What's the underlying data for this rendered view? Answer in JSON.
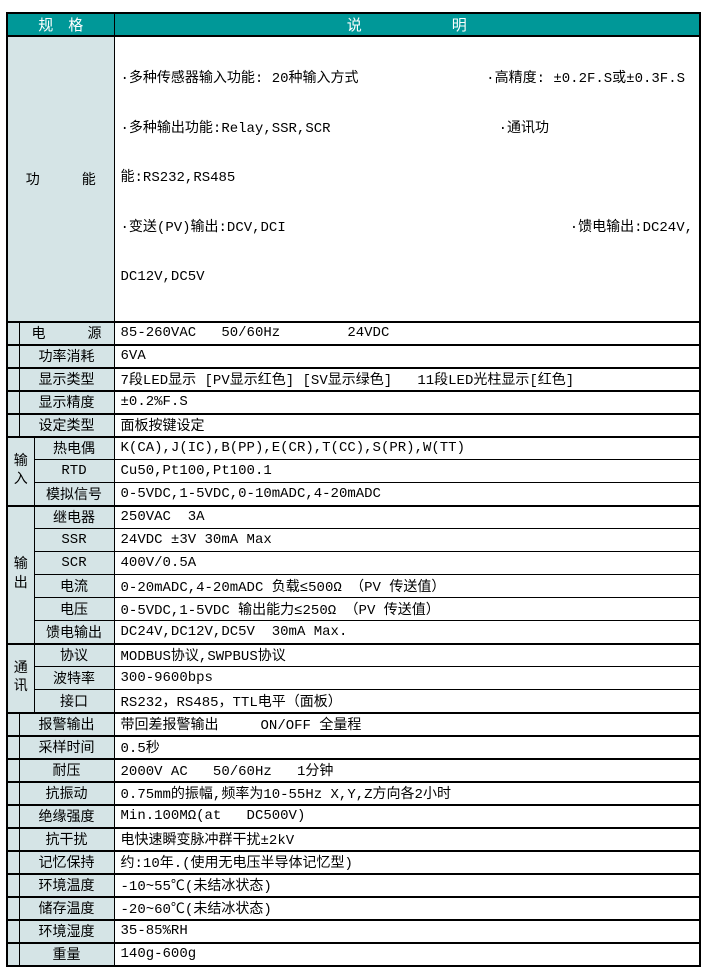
{
  "table": {
    "header": {
      "spec": "规　格",
      "desc": "说　　　　　　明"
    },
    "function_row": {
      "label": "功　　　能",
      "lines": [
        {
          "left": "·多种传感器输入功能: 20种输入方式",
          "right": "·高精度: ±0.2F.S或±0.3F.S"
        },
        {
          "left": "·多种输出功能:Relay,SSR,SCR",
          "right": "·通讯功"
        },
        {
          "left": "能:RS232,RS485",
          "right": ""
        },
        {
          "left": "·变送(PV)输出:DCV,DCI",
          "right": "·馈电输出:DC24V,"
        },
        {
          "left": "DC12V,DC5V",
          "right": ""
        }
      ]
    },
    "simple_rows_top": [
      {
        "label": "电　　　源",
        "value": "85-260VAC   50/60Hz        24VDC"
      },
      {
        "label": "功率消耗",
        "value": "6VA"
      },
      {
        "label": "显示类型",
        "value": "7段LED显示 [PV显示红色] [SV显示绿色]   11段LED光柱显示[红色]"
      },
      {
        "label": "显示精度",
        "value": "±0.2%F.S"
      },
      {
        "label": "设定类型",
        "value": "面板按键设定"
      }
    ],
    "groups": [
      {
        "label": "输入",
        "rows": [
          {
            "label": "热电偶",
            "value": "K(CA),J(IC),B(PP),E(CR),T(CC),S(PR),W(TT)"
          },
          {
            "label": "RTD",
            "value": "Cu50,Pt100,Pt100.1"
          },
          {
            "label": "模拟信号",
            "value": "0-5VDC,1-5VDC,0-10mADC,4-20mADC"
          }
        ]
      },
      {
        "label": "输出",
        "rows": [
          {
            "label": "继电器",
            "value": "250VAC  3A"
          },
          {
            "label": "SSR",
            "value": "24VDC ±3V 30mA Max"
          },
          {
            "label": "SCR",
            "value": "400V/0.5A"
          },
          {
            "label": "电流",
            "value": "0-20mADC,4-20mADC 负载≤500Ω （PV 传送值）"
          },
          {
            "label": "电压",
            "value": "0-5VDC,1-5VDC 输出能力≤250Ω （PV 传送值）"
          },
          {
            "label": "馈电输出",
            "value": "DC24V,DC12V,DC5V  30mA Max."
          }
        ]
      },
      {
        "label": "通讯",
        "rows": [
          {
            "label": "协议",
            "value": "MODBUS协议,SWPBUS协议"
          },
          {
            "label": "波特率",
            "value": "300-9600bps"
          },
          {
            "label": "接口",
            "value": "RS232，RS485，TTL电平（面板）"
          }
        ]
      }
    ],
    "simple_rows_bottom": [
      {
        "label": "报警输出",
        "value": "带回差报警输出     ON/OFF 全量程"
      },
      {
        "label": "采样时间",
        "value": "0.5秒"
      },
      {
        "label": "耐压",
        "value": "2000V AC   50/60Hz   1分钟"
      },
      {
        "label": "抗振动",
        "value": "0.75mm的振幅,频率为10-55Hz X,Y,Z方向各2小时"
      },
      {
        "label": "绝缘强度",
        "value": "Min.100MΩ(at   DC500V)"
      },
      {
        "label": "抗干扰",
        "value": "电快速瞬变脉冲群干扰±2kV"
      },
      {
        "label": "记忆保持",
        "value": "约:10年.(使用无电压半导体记忆型)"
      },
      {
        "label": "环境温度",
        "value": "-10~55℃(未结冰状态)"
      },
      {
        "label": "储存温度",
        "value": "-20~60℃(未结冰状态)"
      },
      {
        "label": "环境湿度",
        "value": "35-85%RH"
      },
      {
        "label": "重量",
        "value": "140g-600g"
      }
    ],
    "colors": {
      "header_bg": "#009898",
      "header_text": "#ffffff",
      "label_bg": "#d5e4e6",
      "border": "#000000"
    }
  }
}
